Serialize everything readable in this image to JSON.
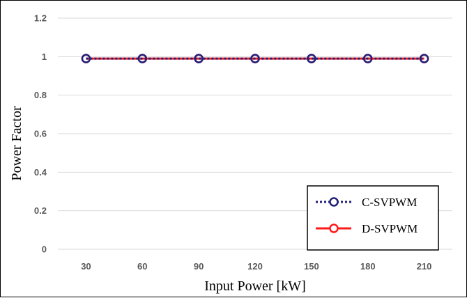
{
  "chart_data": {
    "type": "line",
    "xlabel": "Input Power [kW]",
    "ylabel": "Power Factor",
    "categories": [
      "30",
      "60",
      "90",
      "120",
      "150",
      "180",
      "210"
    ],
    "y_ticks": [
      "0",
      "0.2",
      "0.4",
      "0.6",
      "0.8",
      "1",
      "1.2"
    ],
    "ylim": [
      0,
      1.2
    ],
    "grid": "horizontal",
    "legend_position": "bottom-right",
    "series": [
      {
        "name": "C-SVPWM",
        "values": [
          0.99,
          0.99,
          0.99,
          0.99,
          0.99,
          0.99,
          0.99
        ],
        "color": "#1f1f7a",
        "dashed": true,
        "marker": "circle"
      },
      {
        "name": "D-SVPWM",
        "values": [
          0.99,
          0.99,
          0.99,
          0.99,
          0.99,
          0.99,
          0.99
        ],
        "color": "#ff1a1a",
        "dashed": false,
        "marker": "circle"
      }
    ]
  }
}
